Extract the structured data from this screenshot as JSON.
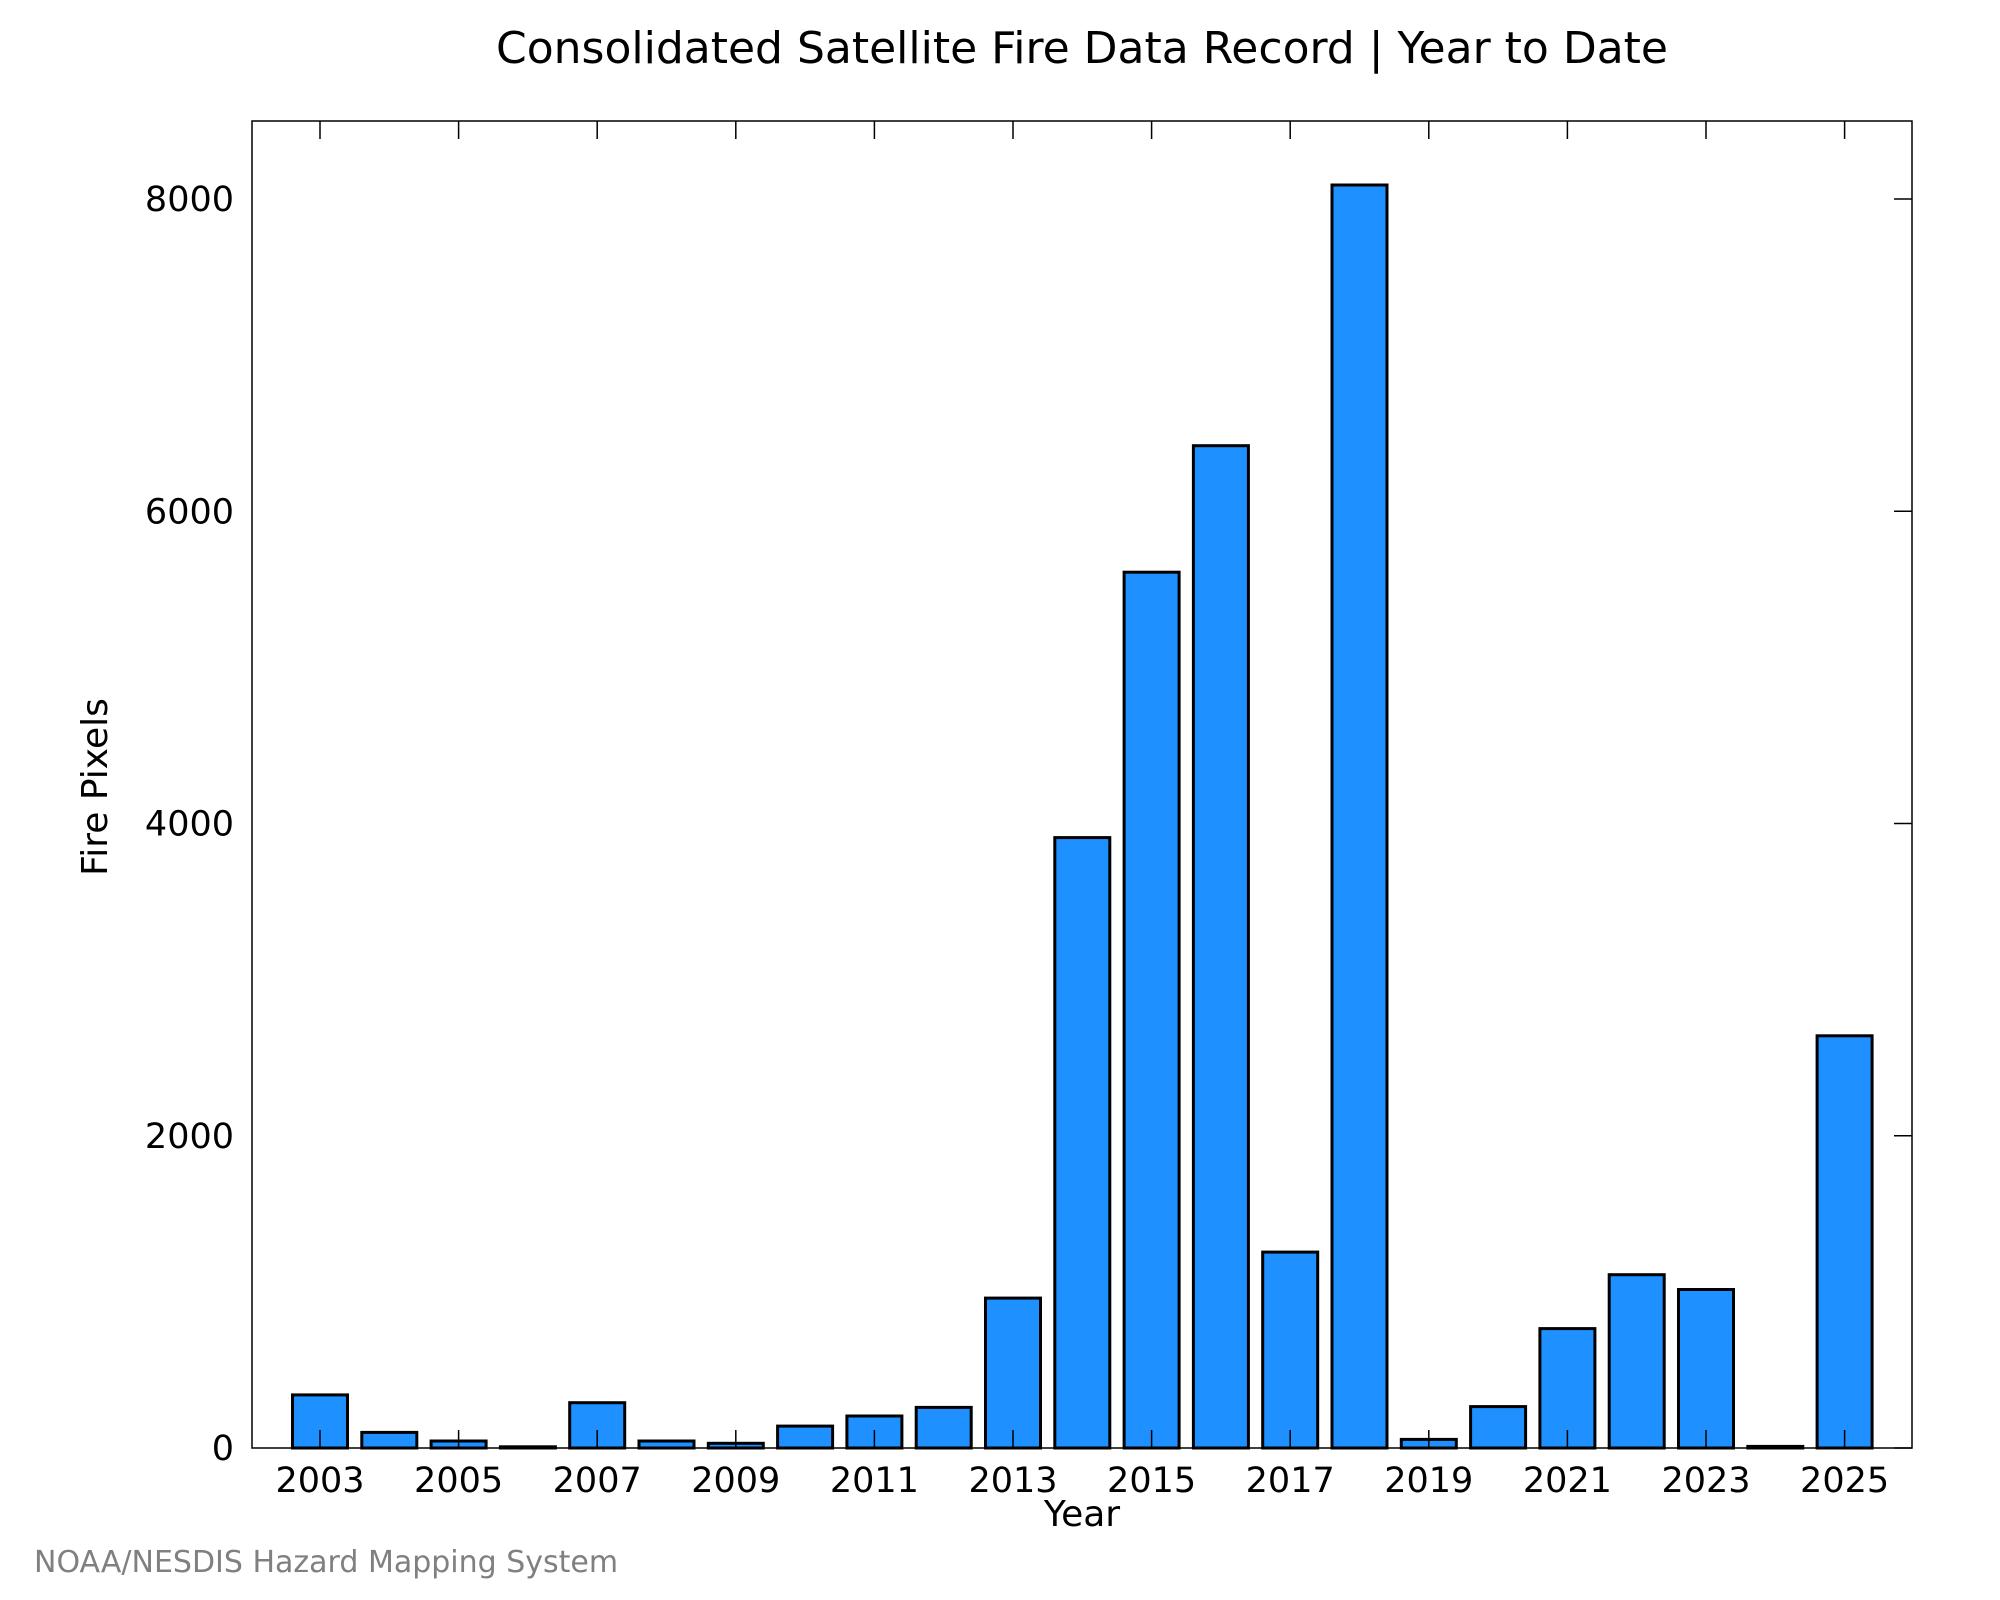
{
  "chart_data": {
    "type": "bar",
    "title": "Consolidated Satellite Fire Data Record | Year to Date",
    "xlabel": "Year",
    "ylabel": "Fire Pixels",
    "categories": [
      "2003",
      "2004",
      "2005",
      "2006",
      "2007",
      "2008",
      "2009",
      "2010",
      "2011",
      "2012",
      "2013",
      "2014",
      "2015",
      "2016",
      "2017",
      "2018",
      "2019",
      "2020",
      "2021",
      "2022",
      "2023",
      "2024",
      "2025"
    ],
    "values": [
      340,
      100,
      45,
      8,
      290,
      45,
      30,
      140,
      205,
      260,
      960,
      3910,
      5610,
      6420,
      1255,
      8090,
      55,
      265,
      765,
      1110,
      1015,
      10,
      2640
    ],
    "x_tick_labels": [
      "2003",
      "2005",
      "2007",
      "2009",
      "2011",
      "2013",
      "2015",
      "2017",
      "2019",
      "2021",
      "2023",
      "2025"
    ],
    "y_ticks": [
      0,
      2000,
      4000,
      6000,
      8000
    ],
    "ylim": [
      0,
      8500
    ],
    "grid": false,
    "bar_color": "#1e90ff"
  },
  "footer": {
    "credit": "NOAA/NESDIS Hazard Mapping System"
  }
}
